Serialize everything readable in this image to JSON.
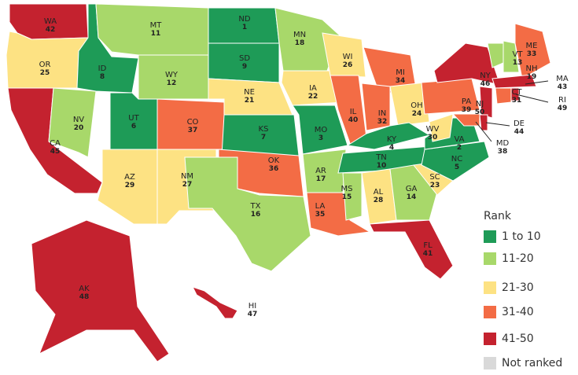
{
  "map": {
    "states": [
      {
        "abbr": "WA",
        "rank": 42,
        "color": "#c4222f"
      },
      {
        "abbr": "OR",
        "rank": 25,
        "color": "#fde283"
      },
      {
        "abbr": "CA",
        "rank": 45,
        "color": "#c4222f"
      },
      {
        "abbr": "NV",
        "rank": 20,
        "color": "#a8d86a"
      },
      {
        "abbr": "ID",
        "rank": 8,
        "color": "#1e9b57"
      },
      {
        "abbr": "MT",
        "rank": 11,
        "color": "#a8d86a"
      },
      {
        "abbr": "WY",
        "rank": 12,
        "color": "#a8d86a"
      },
      {
        "abbr": "UT",
        "rank": 6,
        "color": "#1e9b57"
      },
      {
        "abbr": "AZ",
        "rank": 29,
        "color": "#fde283"
      },
      {
        "abbr": "CO",
        "rank": 37,
        "color": "#f36c45"
      },
      {
        "abbr": "NM",
        "rank": 27,
        "color": "#fde283"
      },
      {
        "abbr": "ND",
        "rank": 1,
        "color": "#1e9b57"
      },
      {
        "abbr": "SD",
        "rank": 9,
        "color": "#1e9b57"
      },
      {
        "abbr": "NE",
        "rank": 21,
        "color": "#fde283"
      },
      {
        "abbr": "KS",
        "rank": 7,
        "color": "#1e9b57"
      },
      {
        "abbr": "OK",
        "rank": 36,
        "color": "#f36c45"
      },
      {
        "abbr": "TX",
        "rank": 16,
        "color": "#a8d86a"
      },
      {
        "abbr": "MN",
        "rank": 18,
        "color": "#a8d86a"
      },
      {
        "abbr": "IA",
        "rank": 22,
        "color": "#fde283"
      },
      {
        "abbr": "MO",
        "rank": 3,
        "color": "#1e9b57"
      },
      {
        "abbr": "AR",
        "rank": 17,
        "color": "#a8d86a"
      },
      {
        "abbr": "LA",
        "rank": 35,
        "color": "#f36c45"
      },
      {
        "abbr": "WI",
        "rank": 26,
        "color": "#fde283"
      },
      {
        "abbr": "IL",
        "rank": 40,
        "color": "#f36c45"
      },
      {
        "abbr": "MI",
        "rank": 34,
        "color": "#f36c45"
      },
      {
        "abbr": "IN",
        "rank": 32,
        "color": "#f36c45"
      },
      {
        "abbr": "OH",
        "rank": 24,
        "color": "#fde283"
      },
      {
        "abbr": "KY",
        "rank": 4,
        "color": "#1e9b57"
      },
      {
        "abbr": "TN",
        "rank": 10,
        "color": "#1e9b57"
      },
      {
        "abbr": "MS",
        "rank": 15,
        "color": "#a8d86a"
      },
      {
        "abbr": "AL",
        "rank": 28,
        "color": "#fde283"
      },
      {
        "abbr": "GA",
        "rank": 14,
        "color": "#a8d86a"
      },
      {
        "abbr": "FL",
        "rank": 41,
        "color": "#c4222f"
      },
      {
        "abbr": "SC",
        "rank": 23,
        "color": "#fde283"
      },
      {
        "abbr": "NC",
        "rank": 5,
        "color": "#1e9b57"
      },
      {
        "abbr": "VA",
        "rank": 2,
        "color": "#1e9b57"
      },
      {
        "abbr": "WV",
        "rank": 30,
        "color": "#fde283"
      },
      {
        "abbr": "PA",
        "rank": 39,
        "color": "#f36c45"
      },
      {
        "abbr": "NY",
        "rank": 46,
        "color": "#c4222f"
      },
      {
        "abbr": "VT",
        "rank": 13,
        "color": "#a8d86a"
      },
      {
        "abbr": "NH",
        "rank": 19,
        "color": "#a8d86a"
      },
      {
        "abbr": "ME",
        "rank": 33,
        "color": "#f36c45"
      },
      {
        "abbr": "MA",
        "rank": 43,
        "color": "#c4222f"
      },
      {
        "abbr": "CT",
        "rank": 31,
        "color": "#f36c45"
      },
      {
        "abbr": "RI",
        "rank": 49,
        "color": "#c4222f"
      },
      {
        "abbr": "NJ",
        "rank": 50,
        "color": "#c4222f"
      },
      {
        "abbr": "DE",
        "rank": 44,
        "color": "#c4222f"
      },
      {
        "abbr": "MD",
        "rank": 38,
        "color": "#f36c45"
      },
      {
        "abbr": "AK",
        "rank": 48,
        "color": "#c4222f"
      },
      {
        "abbr": "HI",
        "rank": 47,
        "color": "#c4222f"
      }
    ],
    "legend": {
      "title": "Rank",
      "items": [
        {
          "label": "1 to 10",
          "color": "#1e9b57"
        },
        {
          "label": "11-20",
          "color": "#a8d86a"
        },
        {
          "label": "21-30",
          "color": "#fde283"
        },
        {
          "label": "31-40",
          "color": "#f36c45"
        },
        {
          "label": "41-50",
          "color": "#c4222f"
        },
        {
          "label": "Not ranked",
          "color": "#d9d9d9"
        }
      ]
    }
  }
}
